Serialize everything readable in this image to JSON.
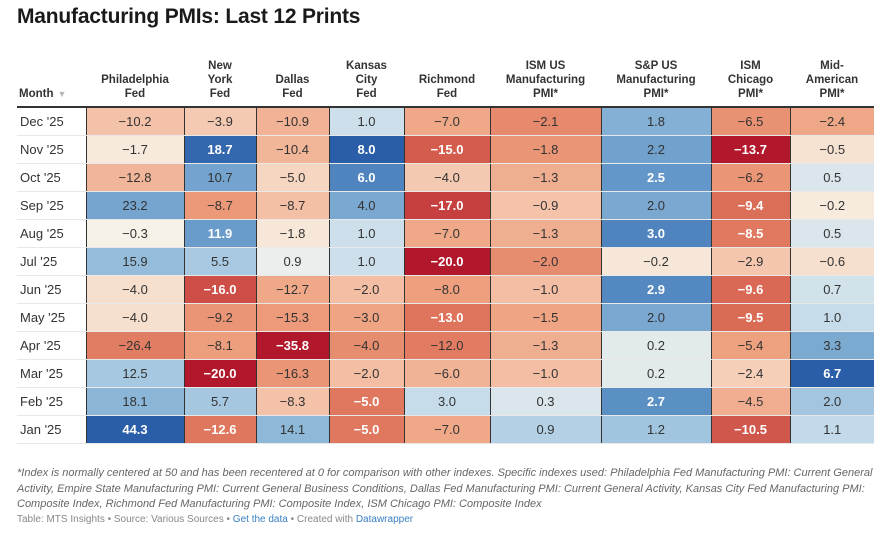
{
  "title": "Manufacturing PMIs: Last 12 Prints",
  "month_header": "Month",
  "sort_icon": "▼",
  "columns": [
    "Philadelphia\nFed",
    "New\nYork\nFed",
    "Dallas\nFed",
    "Kansas\nCity\nFed",
    "Richmond\nFed",
    "ISM US\nManufacturing\nPMI*",
    "S&P US\nManufacturing\nPMI*",
    "ISM\nChicago\nPMI*",
    "Mid-\nAmerican\nPMI*"
  ],
  "chart_data": {
    "type": "table",
    "title": "Manufacturing PMIs: Last 12 Prints",
    "row_label_header": "Month",
    "columns": [
      "Philadelphia Fed",
      "New York Fed",
      "Dallas Fed",
      "Kansas City Fed",
      "Richmond Fed",
      "ISM US Manufacturing PMI*",
      "S&P US Manufacturing PMI*",
      "ISM Chicago PMI*",
      "Mid-American PMI*"
    ],
    "color_scale": {
      "negative": "#b2182b",
      "neutral": "#f7f5ec",
      "positive": "#2b5ea8"
    },
    "rows": [
      {
        "month": "Dec '25",
        "values": [
          -10.2,
          -3.9,
          -10.9,
          1.0,
          -7.0,
          -2.1,
          1.8,
          -6.5,
          -2.4
        ]
      },
      {
        "month": "Nov '25",
        "values": [
          -1.7,
          18.7,
          -10.4,
          8.0,
          -15.0,
          -1.8,
          2.2,
          -13.7,
          -0.5
        ]
      },
      {
        "month": "Oct '25",
        "values": [
          -12.8,
          10.7,
          -5.0,
          6.0,
          -4.0,
          -1.3,
          2.5,
          -6.2,
          0.5
        ]
      },
      {
        "month": "Sep '25",
        "values": [
          23.2,
          -8.7,
          -8.7,
          4.0,
          -17.0,
          -0.9,
          2.0,
          -9.4,
          -0.2
        ]
      },
      {
        "month": "Aug '25",
        "values": [
          -0.3,
          11.9,
          -1.8,
          1.0,
          -7.0,
          -1.3,
          3.0,
          -8.5,
          0.5
        ]
      },
      {
        "month": "Jul '25",
        "values": [
          15.9,
          5.5,
          0.9,
          1.0,
          -20.0,
          -2.0,
          -0.2,
          -2.9,
          -0.6
        ]
      },
      {
        "month": "Jun '25",
        "values": [
          -4.0,
          -16.0,
          -12.7,
          -2.0,
          -8.0,
          -1.0,
          2.9,
          -9.6,
          0.7
        ]
      },
      {
        "month": "May '25",
        "values": [
          -4.0,
          -9.2,
          -15.3,
          -3.0,
          -13.0,
          -1.5,
          2.0,
          -9.5,
          1.0
        ]
      },
      {
        "month": "Apr '25",
        "values": [
          -26.4,
          -8.1,
          -35.8,
          -4.0,
          -12.0,
          -1.3,
          0.2,
          -5.4,
          3.3
        ]
      },
      {
        "month": "Mar '25",
        "values": [
          12.5,
          -20.0,
          -16.3,
          -2.0,
          -6.0,
          -1.0,
          0.2,
          -2.4,
          6.7
        ]
      },
      {
        "month": "Feb '25",
        "values": [
          18.1,
          5.7,
          -8.3,
          -5.0,
          3.0,
          0.3,
          2.7,
          -4.5,
          2.0
        ]
      },
      {
        "month": "Jan '25",
        "values": [
          44.3,
          -12.6,
          14.1,
          -5.0,
          -7.0,
          0.9,
          1.2,
          -10.5,
          1.1
        ]
      }
    ]
  },
  "footnote": "*Index is normally centered at 50 and has been recentered at 0 for comparison with other indexes. Specific indexes used: Philadelphia Fed Manufacturing PMI: Current General Activity, Empire State Manufacturing PMI: Current General Business Conditions, Dallas Fed Manufacturing PMI: Current General Activity, Kansas City Fed Manufacturing PMI: Composite Index, Richmond Fed Manufacturing PMI: Composite Index, ISM Chicago PMI: Composite Index",
  "credits": {
    "prefix": "Table: MTS Insights • Source: Various Sources • ",
    "get_data": "Get the data",
    "middle": " • Created with ",
    "tool": "Datawrapper"
  }
}
